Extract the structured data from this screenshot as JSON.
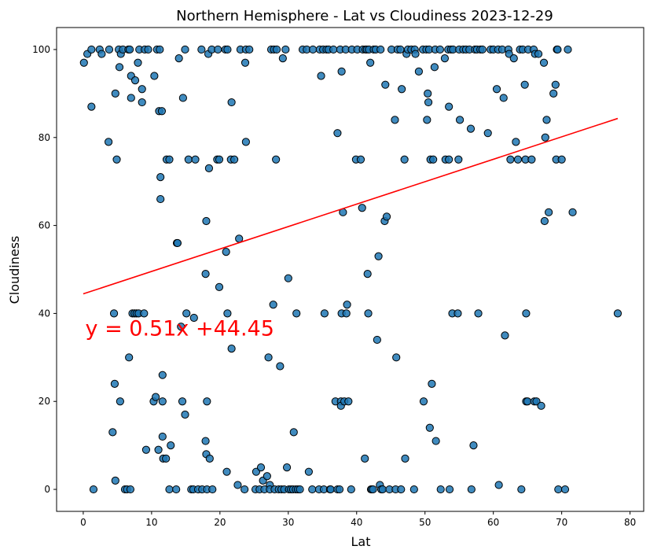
{
  "chart_data": {
    "type": "scatter",
    "title": "Northern Hemisphere - Lat vs Cloudiness 2023-12-29",
    "xlabel": "Lat",
    "ylabel": "Cloudiness",
    "xlim": [
      -3.9,
      82
    ],
    "ylim": [
      -5,
      105
    ],
    "xticks": [
      0,
      10,
      20,
      30,
      40,
      50,
      60,
      70,
      80
    ],
    "yticks": [
      0,
      20,
      40,
      60,
      80,
      100
    ],
    "grid": false,
    "legend": "none",
    "point_color": "#1f77b4",
    "point_edge_color": "#000000",
    "line_color": "#ff0000",
    "annotation": {
      "text": "y = 0.51x +44.45",
      "x": 0.3,
      "y": 35,
      "color": "#ff0000"
    },
    "regression": {
      "slope": 0.51,
      "intercept": 44.45,
      "x_range": [
        0,
        78.2
      ]
    },
    "points": [
      [
        0.1,
        97
      ],
      [
        0.6,
        99
      ],
      [
        1.2,
        100
      ],
      [
        1.2,
        87
      ],
      [
        1.5,
        0
      ],
      [
        2.4,
        100
      ],
      [
        2.7,
        99
      ],
      [
        3.7,
        79
      ],
      [
        3.8,
        100
      ],
      [
        4.3,
        13
      ],
      [
        4.5,
        40
      ],
      [
        4.6,
        24
      ],
      [
        4.7,
        90
      ],
      [
        4.7,
        2
      ],
      [
        4.9,
        75
      ],
      [
        5.2,
        100
      ],
      [
        5.3,
        96
      ],
      [
        5.4,
        20
      ],
      [
        5.5,
        99
      ],
      [
        5.8,
        100
      ],
      [
        6.1,
        0
      ],
      [
        6.4,
        0
      ],
      [
        6.6,
        100
      ],
      [
        6.7,
        30
      ],
      [
        6.8,
        100
      ],
      [
        6.9,
        0
      ],
      [
        7.0,
        94
      ],
      [
        7.0,
        89
      ],
      [
        7.2,
        40
      ],
      [
        7.5,
        40
      ],
      [
        7.6,
        93
      ],
      [
        7.8,
        40
      ],
      [
        8.0,
        97
      ],
      [
        8.1,
        40
      ],
      [
        8.2,
        100
      ],
      [
        8.6,
        91
      ],
      [
        8.6,
        88
      ],
      [
        8.9,
        40
      ],
      [
        9.0,
        100
      ],
      [
        9.2,
        9
      ],
      [
        9.5,
        100
      ],
      [
        10.3,
        20
      ],
      [
        10.4,
        94
      ],
      [
        10.6,
        21
      ],
      [
        10.8,
        100
      ],
      [
        11.0,
        9
      ],
      [
        11.1,
        86
      ],
      [
        11.2,
        100
      ],
      [
        11.3,
        71
      ],
      [
        11.3,
        66
      ],
      [
        11.5,
        86
      ],
      [
        11.6,
        26
      ],
      [
        11.6,
        20
      ],
      [
        11.6,
        12
      ],
      [
        11.7,
        7
      ],
      [
        12.1,
        7
      ],
      [
        12.2,
        75
      ],
      [
        12.6,
        0
      ],
      [
        12.6,
        75
      ],
      [
        12.8,
        10
      ],
      [
        13.6,
        0
      ],
      [
        13.7,
        56
      ],
      [
        13.8,
        56
      ],
      [
        14.0,
        98
      ],
      [
        14.3,
        37
      ],
      [
        14.5,
        20
      ],
      [
        14.6,
        89
      ],
      [
        14.9,
        17
      ],
      [
        14.9,
        100
      ],
      [
        15.1,
        40
      ],
      [
        15.4,
        75
      ],
      [
        15.8,
        0
      ],
      [
        16.1,
        0
      ],
      [
        16.2,
        39
      ],
      [
        16.4,
        75
      ],
      [
        16.8,
        0
      ],
      [
        17.3,
        100
      ],
      [
        17.4,
        0
      ],
      [
        17.9,
        49
      ],
      [
        17.9,
        11
      ],
      [
        18.0,
        61
      ],
      [
        18.0,
        8
      ],
      [
        18.1,
        20
      ],
      [
        18.1,
        0
      ],
      [
        18.3,
        99
      ],
      [
        18.4,
        73
      ],
      [
        18.5,
        7
      ],
      [
        18.8,
        100
      ],
      [
        18.9,
        0
      ],
      [
        19.6,
        75
      ],
      [
        19.7,
        100
      ],
      [
        19.9,
        75
      ],
      [
        19.9,
        46
      ],
      [
        20.8,
        100
      ],
      [
        20.9,
        54
      ],
      [
        21.0,
        4
      ],
      [
        21.1,
        40
      ],
      [
        21.1,
        100
      ],
      [
        21.6,
        75
      ],
      [
        21.7,
        88
      ],
      [
        21.7,
        32
      ],
      [
        22.1,
        75
      ],
      [
        22.6,
        1
      ],
      [
        22.8,
        57
      ],
      [
        23.0,
        100
      ],
      [
        23.6,
        0
      ],
      [
        23.7,
        97
      ],
      [
        23.8,
        79
      ],
      [
        23.8,
        100
      ],
      [
        24.3,
        100
      ],
      [
        25.2,
        0
      ],
      [
        25.3,
        4
      ],
      [
        25.8,
        0
      ],
      [
        26.0,
        5
      ],
      [
        26.3,
        2
      ],
      [
        26.5,
        0
      ],
      [
        26.9,
        3
      ],
      [
        27.1,
        30
      ],
      [
        27.3,
        1
      ],
      [
        27.3,
        0
      ],
      [
        27.5,
        100
      ],
      [
        27.8,
        42
      ],
      [
        27.9,
        100
      ],
      [
        28.0,
        0
      ],
      [
        28.2,
        75
      ],
      [
        28.3,
        100
      ],
      [
        28.6,
        0
      ],
      [
        28.8,
        28
      ],
      [
        29.0,
        0
      ],
      [
        29.2,
        98
      ],
      [
        29.4,
        0
      ],
      [
        29.6,
        100
      ],
      [
        29.8,
        5
      ],
      [
        30.0,
        48
      ],
      [
        30.1,
        0
      ],
      [
        30.4,
        0
      ],
      [
        30.7,
        0
      ],
      [
        30.8,
        13
      ],
      [
        31.1,
        0
      ],
      [
        31.2,
        40
      ],
      [
        31.4,
        0
      ],
      [
        31.7,
        0
      ],
      [
        32.1,
        100
      ],
      [
        32.7,
        100
      ],
      [
        33.0,
        4
      ],
      [
        33.5,
        0
      ],
      [
        33.6,
        100
      ],
      [
        34.5,
        0
      ],
      [
        34.6,
        100
      ],
      [
        34.8,
        94
      ],
      [
        35.1,
        100
      ],
      [
        35.2,
        0
      ],
      [
        35.3,
        40
      ],
      [
        35.6,
        100
      ],
      [
        35.9,
        100
      ],
      [
        36.1,
        0
      ],
      [
        36.2,
        0
      ],
      [
        36.6,
        100
      ],
      [
        36.9,
        20
      ],
      [
        37.2,
        81
      ],
      [
        37.2,
        0
      ],
      [
        37.5,
        0
      ],
      [
        37.6,
        100
      ],
      [
        37.7,
        20
      ],
      [
        37.7,
        19
      ],
      [
        37.8,
        40
      ],
      [
        37.8,
        95
      ],
      [
        38.0,
        63
      ],
      [
        38.2,
        20
      ],
      [
        38.4,
        100
      ],
      [
        38.5,
        40
      ],
      [
        38.6,
        42
      ],
      [
        38.8,
        20
      ],
      [
        39.2,
        0
      ],
      [
        39.3,
        100
      ],
      [
        39.9,
        75
      ],
      [
        40.1,
        100
      ],
      [
        40.6,
        75
      ],
      [
        40.8,
        64
      ],
      [
        40.9,
        100
      ],
      [
        41.2,
        7
      ],
      [
        41.3,
        100
      ],
      [
        41.5,
        100
      ],
      [
        41.6,
        49
      ],
      [
        41.7,
        40
      ],
      [
        41.8,
        100
      ],
      [
        42.0,
        97
      ],
      [
        42.1,
        0
      ],
      [
        42.2,
        0
      ],
      [
        42.4,
        0
      ],
      [
        42.5,
        100
      ],
      [
        42.8,
        100
      ],
      [
        43.0,
        34
      ],
      [
        43.2,
        53
      ],
      [
        43.4,
        1
      ],
      [
        43.5,
        100
      ],
      [
        43.6,
        0
      ],
      [
        43.8,
        0
      ],
      [
        44.1,
        61
      ],
      [
        44.2,
        92
      ],
      [
        44.4,
        62
      ],
      [
        44.8,
        0
      ],
      [
        45.1,
        100
      ],
      [
        45.6,
        84
      ],
      [
        45.7,
        0
      ],
      [
        45.8,
        30
      ],
      [
        46.0,
        100
      ],
      [
        46.4,
        100
      ],
      [
        46.5,
        0
      ],
      [
        46.6,
        91
      ],
      [
        47.0,
        75
      ],
      [
        47.1,
        7
      ],
      [
        47.3,
        99
      ],
      [
        47.5,
        100
      ],
      [
        48.0,
        100
      ],
      [
        48.4,
        0
      ],
      [
        48.5,
        100
      ],
      [
        48.6,
        99
      ],
      [
        49.1,
        95
      ],
      [
        49.7,
        100
      ],
      [
        49.8,
        20
      ],
      [
        50.2,
        100
      ],
      [
        50.3,
        84
      ],
      [
        50.4,
        90
      ],
      [
        50.5,
        88
      ],
      [
        50.6,
        100
      ],
      [
        50.7,
        14
      ],
      [
        50.8,
        75
      ],
      [
        51.0,
        24
      ],
      [
        51.2,
        75
      ],
      [
        51.4,
        96
      ],
      [
        51.5,
        100
      ],
      [
        51.6,
        11
      ],
      [
        52.2,
        100
      ],
      [
        52.3,
        0
      ],
      [
        52.9,
        98
      ],
      [
        53.0,
        75
      ],
      [
        53.4,
        100
      ],
      [
        53.5,
        75
      ],
      [
        53.5,
        87
      ],
      [
        53.6,
        0
      ],
      [
        53.8,
        100
      ],
      [
        54.0,
        40
      ],
      [
        54.1,
        100
      ],
      [
        54.8,
        40
      ],
      [
        54.9,
        75
      ],
      [
        55.0,
        100
      ],
      [
        55.1,
        84
      ],
      [
        55.6,
        100
      ],
      [
        56.0,
        100
      ],
      [
        56.5,
        100
      ],
      [
        56.7,
        82
      ],
      [
        56.8,
        0
      ],
      [
        57.1,
        10
      ],
      [
        57.3,
        100
      ],
      [
        57.6,
        100
      ],
      [
        57.8,
        40
      ],
      [
        58.1,
        100
      ],
      [
        58.4,
        100
      ],
      [
        59.2,
        81
      ],
      [
        59.6,
        100
      ],
      [
        60.0,
        100
      ],
      [
        60.5,
        91
      ],
      [
        60.7,
        100
      ],
      [
        60.8,
        1
      ],
      [
        61.3,
        100
      ],
      [
        61.5,
        89
      ],
      [
        61.7,
        35
      ],
      [
        62.2,
        100
      ],
      [
        62.3,
        99
      ],
      [
        62.5,
        75
      ],
      [
        63.0,
        98
      ],
      [
        63.3,
        79
      ],
      [
        63.6,
        75
      ],
      [
        63.9,
        100
      ],
      [
        64.1,
        0
      ],
      [
        64.3,
        100
      ],
      [
        64.6,
        92
      ],
      [
        64.7,
        75
      ],
      [
        64.8,
        40
      ],
      [
        64.8,
        20
      ],
      [
        65.0,
        20
      ],
      [
        65.1,
        100
      ],
      [
        65.6,
        75
      ],
      [
        65.9,
        100
      ],
      [
        66.0,
        20
      ],
      [
        66.1,
        99
      ],
      [
        66.3,
        20
      ],
      [
        66.6,
        99
      ],
      [
        67.0,
        19
      ],
      [
        67.4,
        97
      ],
      [
        67.5,
        61
      ],
      [
        67.6,
        80
      ],
      [
        67.8,
        84
      ],
      [
        68.1,
        63
      ],
      [
        68.8,
        90
      ],
      [
        69.1,
        92
      ],
      [
        69.2,
        75
      ],
      [
        69.3,
        100
      ],
      [
        69.4,
        100
      ],
      [
        69.5,
        0
      ],
      [
        70.0,
        75
      ],
      [
        70.5,
        0
      ],
      [
        70.9,
        100
      ],
      [
        71.6,
        63
      ],
      [
        78.2,
        40
      ]
    ]
  }
}
